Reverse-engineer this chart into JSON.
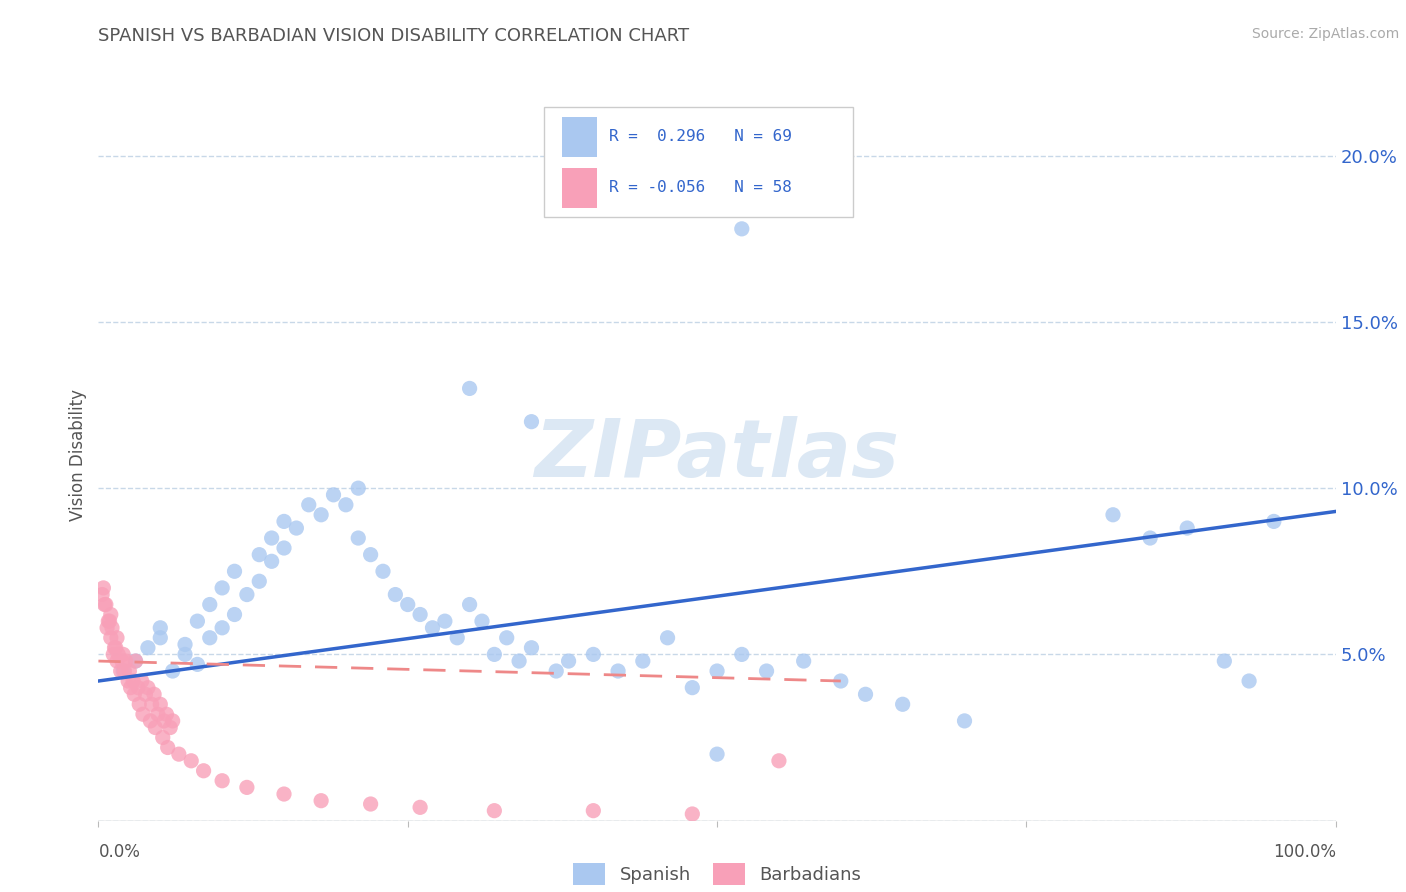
{
  "title": "SPANISH VS BARBADIAN VISION DISABILITY CORRELATION CHART",
  "source": "Source: ZipAtlas.com",
  "ylabel": "Vision Disability",
  "yticks": [
    0.0,
    0.05,
    0.1,
    0.15,
    0.2
  ],
  "ytick_labels": [
    "",
    "5.0%",
    "10.0%",
    "15.0%",
    "20.0%"
  ],
  "xlim": [
    0.0,
    1.0
  ],
  "ylim": [
    0.0,
    0.22
  ],
  "legend_r1": "R =  0.296",
  "legend_n1": "N = 69",
  "legend_r2": "R = -0.056",
  "legend_n2": "N = 58",
  "spanish_color": "#aac8f0",
  "barbadian_color": "#f8a0b8",
  "spanish_line_color": "#3366cc",
  "barbadian_line_color": "#ee8888",
  "background_color": "#ffffff",
  "grid_color": "#c8d8e8",
  "watermark_color": "#dce8f4",
  "spanish_x": [
    0.02,
    0.03,
    0.04,
    0.05,
    0.05,
    0.06,
    0.07,
    0.07,
    0.08,
    0.08,
    0.09,
    0.09,
    0.1,
    0.1,
    0.11,
    0.11,
    0.12,
    0.13,
    0.13,
    0.14,
    0.14,
    0.15,
    0.15,
    0.16,
    0.17,
    0.18,
    0.19,
    0.2,
    0.21,
    0.21,
    0.22,
    0.23,
    0.24,
    0.25,
    0.26,
    0.27,
    0.28,
    0.29,
    0.3,
    0.31,
    0.32,
    0.33,
    0.34,
    0.35,
    0.37,
    0.38,
    0.4,
    0.42,
    0.44,
    0.46,
    0.48,
    0.5,
    0.52,
    0.54,
    0.57,
    0.6,
    0.62,
    0.65,
    0.7,
    0.82,
    0.85,
    0.88,
    0.91,
    0.93,
    0.95,
    0.3,
    0.35,
    0.5,
    0.52
  ],
  "spanish_y": [
    0.045,
    0.048,
    0.052,
    0.055,
    0.058,
    0.045,
    0.05,
    0.053,
    0.047,
    0.06,
    0.055,
    0.065,
    0.058,
    0.07,
    0.062,
    0.075,
    0.068,
    0.072,
    0.08,
    0.078,
    0.085,
    0.082,
    0.09,
    0.088,
    0.095,
    0.092,
    0.098,
    0.095,
    0.1,
    0.085,
    0.08,
    0.075,
    0.068,
    0.065,
    0.062,
    0.058,
    0.06,
    0.055,
    0.065,
    0.06,
    0.05,
    0.055,
    0.048,
    0.052,
    0.045,
    0.048,
    0.05,
    0.045,
    0.048,
    0.055,
    0.04,
    0.045,
    0.05,
    0.045,
    0.048,
    0.042,
    0.038,
    0.035,
    0.03,
    0.092,
    0.085,
    0.088,
    0.048,
    0.042,
    0.09,
    0.13,
    0.12,
    0.02,
    0.178
  ],
  "barbadian_x": [
    0.005,
    0.007,
    0.008,
    0.01,
    0.01,
    0.012,
    0.013,
    0.015,
    0.015,
    0.018,
    0.02,
    0.022,
    0.025,
    0.028,
    0.03,
    0.032,
    0.035,
    0.038,
    0.04,
    0.043,
    0.045,
    0.048,
    0.05,
    0.053,
    0.055,
    0.058,
    0.06,
    0.003,
    0.004,
    0.006,
    0.009,
    0.011,
    0.014,
    0.016,
    0.019,
    0.021,
    0.024,
    0.026,
    0.029,
    0.033,
    0.036,
    0.042,
    0.046,
    0.052,
    0.056,
    0.065,
    0.075,
    0.085,
    0.1,
    0.12,
    0.15,
    0.18,
    0.22,
    0.26,
    0.32,
    0.4,
    0.48,
    0.55
  ],
  "barbadian_y": [
    0.065,
    0.058,
    0.06,
    0.055,
    0.062,
    0.05,
    0.052,
    0.048,
    0.055,
    0.045,
    0.05,
    0.048,
    0.045,
    0.042,
    0.048,
    0.04,
    0.042,
    0.038,
    0.04,
    0.035,
    0.038,
    0.032,
    0.035,
    0.03,
    0.032,
    0.028,
    0.03,
    0.068,
    0.07,
    0.065,
    0.06,
    0.058,
    0.052,
    0.05,
    0.048,
    0.045,
    0.042,
    0.04,
    0.038,
    0.035,
    0.032,
    0.03,
    0.028,
    0.025,
    0.022,
    0.02,
    0.018,
    0.015,
    0.012,
    0.01,
    0.008,
    0.006,
    0.005,
    0.004,
    0.003,
    0.003,
    0.002,
    0.018
  ]
}
